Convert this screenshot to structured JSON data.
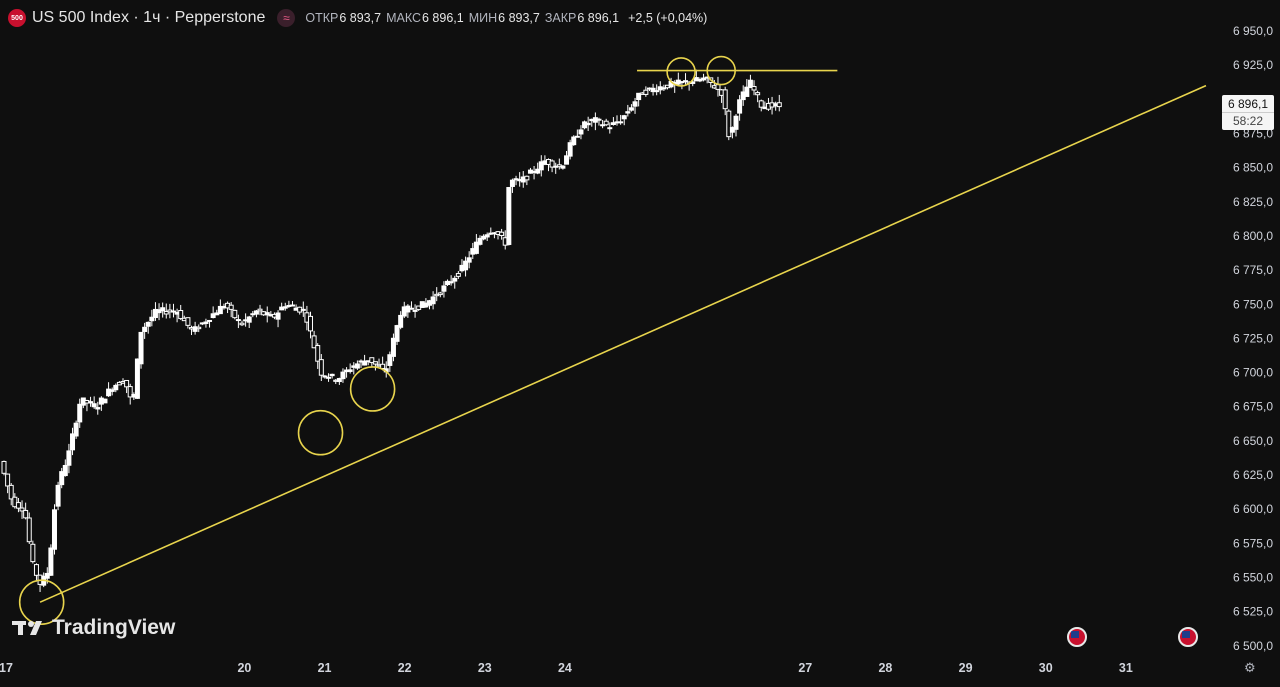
{
  "header": {
    "badge": "500",
    "title": "US 500 Index · 1ч · Pepperstone",
    "wave_icon": "≈",
    "open_label": "ОТКР",
    "open": "6 893,7",
    "high_label": "МАКС",
    "high": "6 896,1",
    "low_label": "МИН",
    "low": "6 893,7",
    "close_label": "ЗАКР",
    "close": "6 896,1",
    "change": "+2,5 (+0,04%)"
  },
  "price_tag": {
    "price": "6 896,1",
    "countdown": "58:22"
  },
  "logo": {
    "text": "TradingView"
  },
  "colors": {
    "background": "#0f0f0f",
    "candle_up": "#ffffff",
    "candle_down": "#ffffff",
    "trendline": "#e8d44d",
    "text": "#d1d4dc"
  },
  "icons": [
    "tradingview-logo-icon",
    "us-flag-icon",
    "settings-gear-icon"
  ],
  "chart_data": {
    "type": "candlestick",
    "title": "US 500 Index · 1ч · Pepperstone",
    "y_ticks": [
      6950,
      6925,
      6900,
      6875,
      6850,
      6825,
      6800,
      6775,
      6750,
      6725,
      6700,
      6675,
      6650,
      6625,
      6600,
      6575,
      6550,
      6525,
      6500
    ],
    "y_tick_labels": [
      "6 950,0",
      "6 925,0",
      "6 900,0",
      "6 875,0",
      "6 850,0",
      "6 825,0",
      "6 800,0",
      "6 775,0",
      "6 750,0",
      "6 725,0",
      "6 700,0",
      "6 675,0",
      "6 650,0",
      "6 625,0",
      "6 600,0",
      "6 575,0",
      "6 550,0",
      "6 525,0",
      "6 500,0"
    ],
    "ylim": [
      6497,
      6958
    ],
    "x_ticks": [
      17,
      20,
      21,
      22,
      23,
      24,
      27,
      28,
      29,
      30,
      31
    ],
    "x_tick_labels": [
      "17",
      "20",
      "21",
      "22",
      "23",
      "24",
      "27",
      "28",
      "29",
      "30",
      "31"
    ],
    "xlim": [
      16.95,
      32.2
    ],
    "price_path": [
      [
        17.0,
        6635
      ],
      [
        17.15,
        6605
      ],
      [
        17.3,
        6600
      ],
      [
        17.4,
        6560
      ],
      [
        17.5,
        6545
      ],
      [
        17.6,
        6555
      ],
      [
        17.7,
        6615
      ],
      [
        17.85,
        6640
      ],
      [
        18.0,
        6680
      ],
      [
        18.2,
        6675
      ],
      [
        18.4,
        6690
      ],
      [
        18.55,
        6695
      ],
      [
        18.65,
        6675
      ],
      [
        18.75,
        6730
      ],
      [
        18.95,
        6745
      ],
      [
        19.2,
        6745
      ],
      [
        19.4,
        6730
      ],
      [
        19.6,
        6740
      ],
      [
        19.8,
        6750
      ],
      [
        20.0,
        6735
      ],
      [
        20.2,
        6745
      ],
      [
        20.4,
        6740
      ],
      [
        20.55,
        6750
      ],
      [
        20.8,
        6745
      ],
      [
        21.0,
        6700
      ],
      [
        21.2,
        6695
      ],
      [
        21.4,
        6705
      ],
      [
        21.6,
        6710
      ],
      [
        21.8,
        6700
      ],
      [
        22.0,
        6745
      ],
      [
        22.3,
        6750
      ],
      [
        22.5,
        6760
      ],
      [
        22.75,
        6775
      ],
      [
        23.0,
        6800
      ],
      [
        23.15,
        6805
      ],
      [
        23.3,
        6795
      ],
      [
        23.35,
        6840
      ],
      [
        23.5,
        6840
      ],
      [
        23.8,
        6855
      ],
      [
        24.0,
        6850
      ],
      [
        24.1,
        6865
      ],
      [
        24.25,
        6880
      ],
      [
        24.4,
        6885
      ],
      [
        24.6,
        6880
      ],
      [
        24.75,
        6885
      ],
      [
        25.0,
        6905
      ],
      [
        25.3,
        6910
      ],
      [
        25.6,
        6913
      ],
      [
        25.8,
        6915
      ],
      [
        26.0,
        6905
      ],
      [
        26.05,
        6890
      ],
      [
        26.1,
        6870
      ],
      [
        26.2,
        6895
      ],
      [
        26.35,
        6913
      ],
      [
        26.5,
        6895
      ],
      [
        26.7,
        6895
      ]
    ],
    "trendlines": [
      {
        "from": [
          17.45,
          6532
        ],
        "to": [
          32.0,
          6910
        ]
      },
      {
        "from": [
          24.9,
          6921
        ],
        "to": [
          27.4,
          6921
        ]
      }
    ],
    "circles": [
      {
        "x": 17.47,
        "y": 6532
      },
      {
        "x": 20.95,
        "y": 6656
      },
      {
        "x": 21.6,
        "y": 6688
      },
      {
        "x": 25.45,
        "y": 6920
      },
      {
        "x": 25.95,
        "y": 6921
      }
    ],
    "current_price": 6896.1,
    "grid": false
  }
}
